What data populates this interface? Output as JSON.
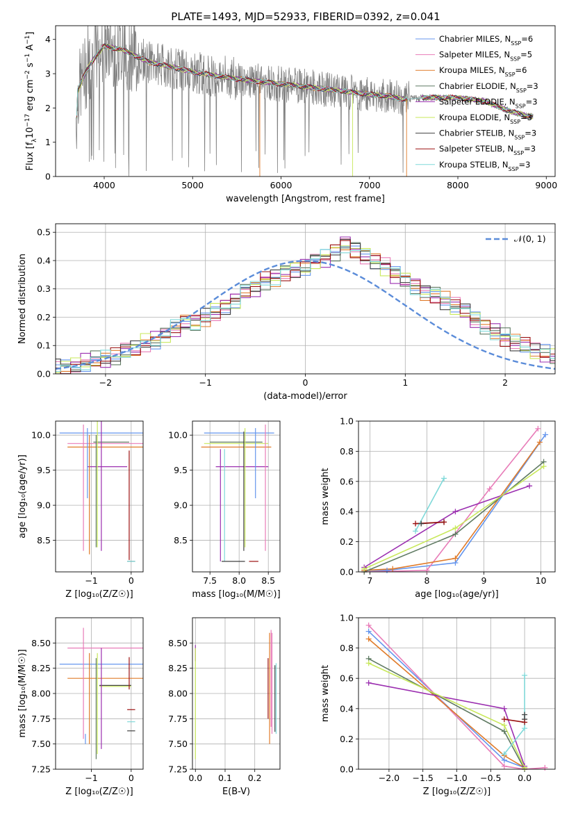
{
  "figure_title": "PLATE=1493, MJD=52933, FIBERID=0392, z=0.041",
  "models": [
    {
      "name": "Chabrier MILES",
      "nssp": "6",
      "color": "#6495ed"
    },
    {
      "name": "Salpeter MILES",
      "nssp": "5",
      "color": "#e87cb8"
    },
    {
      "name": "Kroupa MILES",
      "nssp": "6",
      "color": "#e07b2a"
    },
    {
      "name": "Chabrier ELODIE",
      "nssp": "3",
      "color": "#5f7a62"
    },
    {
      "name": "Salpeter ELODIE",
      "nssp": "3",
      "color": "#9b2fb0"
    },
    {
      "name": "Kroupa ELODIE",
      "nssp": "3",
      "color": "#c8e85a"
    },
    {
      "name": "Chabrier STELIB",
      "nssp": "3",
      "color": "#404040"
    },
    {
      "name": "Salpeter STELIB",
      "nssp": "3",
      "color": "#9b1010"
    },
    {
      "name": "Kroupa STELIB",
      "nssp": "3",
      "color": "#7fd9d9"
    }
  ],
  "chart_data": [
    {
      "type": "line",
      "id": "spectrum",
      "xlabel": "wavelength [Angstrom, rest frame]",
      "ylabel": "Flux [f",
      "xlim": [
        3450,
        9100
      ],
      "ylim": [
        0,
        4.4
      ],
      "xticks": [
        4000,
        5000,
        6000,
        7000,
        8000,
        9000
      ],
      "yticks": [
        0,
        1,
        2,
        3,
        4
      ],
      "data_color": "#808080",
      "continuum": {
        "x": [
          3700,
          3800,
          3900,
          4000,
          4200,
          4500,
          5000,
          5500,
          6000,
          6500,
          7000,
          7200,
          7400,
          7600,
          8000,
          8300,
          8600,
          8800
        ],
        "y": [
          2.5,
          3.1,
          3.5,
          3.8,
          3.7,
          3.35,
          3.05,
          2.85,
          2.7,
          2.55,
          2.4,
          2.35,
          2.25,
          2.3,
          2.3,
          2.2,
          1.9,
          1.75
        ]
      },
      "legend_suffix": "=N",
      "legend_sub": "SSP"
    },
    {
      "type": "line",
      "id": "residuals",
      "xlabel": "(data-model)/error",
      "ylabel": "Normed distribution",
      "xlim": [
        -2.5,
        2.5
      ],
      "ylim": [
        0,
        0.53
      ],
      "xticks": [
        -2,
        -1,
        0,
        1,
        2
      ],
      "yticks": [
        0.0,
        0.1,
        0.2,
        0.3,
        0.4,
        0.5
      ],
      "gauss_label": "𝒩(0, 1)",
      "gauss_color": "#5b8cd9",
      "bin_width": 0.1,
      "hist_base": [
        0.02,
        0.02,
        0.03,
        0.04,
        0.05,
        0.05,
        0.06,
        0.08,
        0.09,
        0.11,
        0.12,
        0.14,
        0.16,
        0.18,
        0.18,
        0.2,
        0.22,
        0.24,
        0.26,
        0.29,
        0.3,
        0.33,
        0.34,
        0.36,
        0.37,
        0.38,
        0.4,
        0.41,
        0.43,
        0.46,
        0.44,
        0.42,
        0.4,
        0.38,
        0.35,
        0.33,
        0.31,
        0.29,
        0.28,
        0.26,
        0.24,
        0.22,
        0.19,
        0.17,
        0.15,
        0.13,
        0.11,
        0.1,
        0.08,
        0.07,
        0.06,
        0.05,
        0.04,
        0.03,
        0.03,
        0.02,
        0.02,
        0.02,
        0.02,
        0.02,
        0.02
      ]
    },
    {
      "type": "scatter",
      "id": "z-age",
      "xlabel": "Z [log₁₀(Z/Z☉)]",
      "ylabel": "age  [log₁₀(age/yr)]",
      "xlim": [
        -1.9,
        0.3
      ],
      "ylim": [
        8.05,
        10.2
      ],
      "xticks": [
        -1,
        0
      ],
      "yticks": [
        8.5,
        9.0,
        9.5,
        10.0
      ],
      "points": [
        {
          "m": 0,
          "x": -0.6,
          "y": 10.03,
          "ex": 1.2,
          "ey": 0.0
        },
        {
          "m": 1,
          "x": -0.6,
          "y": 9.88,
          "ex": 1.0,
          "ey": 0.0
        },
        {
          "m": 2,
          "x": -0.6,
          "y": 9.83,
          "ex": 1.0,
          "ey": 0.0
        },
        {
          "m": 3,
          "x": -0.5,
          "y": 9.9,
          "ex": 0.45,
          "ey": 0.0
        },
        {
          "m": 4,
          "x": -0.6,
          "y": 9.55,
          "ex": 0.5,
          "ey": 0.0
        },
        {
          "m": 1,
          "x": -1.2,
          "y": 9.25,
          "ex": 0.0,
          "ey": 0.9
        },
        {
          "m": 2,
          "x": -1.05,
          "y": 9.15,
          "ex": 0.0,
          "ey": 0.85
        },
        {
          "m": 5,
          "x": -0.85,
          "y": 9.3,
          "ex": 0.0,
          "ey": 0.9
        },
        {
          "m": 4,
          "x": -0.75,
          "y": 9.3,
          "ex": 0.0,
          "ey": 0.95
        },
        {
          "m": 3,
          "x": -0.88,
          "y": 9.2,
          "ex": 0.0,
          "ey": 0.8
        },
        {
          "m": 0,
          "x": -1.1,
          "y": 9.6,
          "ex": 0.0,
          "ey": 0.5
        },
        {
          "m": 7,
          "x": -0.05,
          "y": 9.0,
          "ex": 0.0,
          "ey": 0.78
        },
        {
          "m": 6,
          "x": 0.0,
          "y": 8.2,
          "ex": 0.1,
          "ey": 0.0
        },
        {
          "m": 8,
          "x": 0.0,
          "y": 8.2,
          "ex": 0.1,
          "ey": 0.0
        }
      ]
    },
    {
      "type": "scatter",
      "id": "mass-age",
      "xlabel": "mass [log₁₀(M/M☉)]",
      "ylabel": "",
      "xlim": [
        7.2,
        8.7
      ],
      "ylim": [
        8.05,
        10.2
      ],
      "xticks": [
        7.5,
        8.0,
        8.5
      ],
      "yticks": [
        8.5,
        9.0,
        9.5,
        10.0
      ],
      "points": [
        {
          "m": 0,
          "x": 8.0,
          "y": 10.03,
          "ex": 0.6,
          "ey": 0.0
        },
        {
          "m": 5,
          "x": 7.95,
          "y": 9.88,
          "ex": 0.55,
          "ey": 0.0
        },
        {
          "m": 2,
          "x": 7.95,
          "y": 9.83,
          "ex": 0.6,
          "ey": 0.0
        },
        {
          "m": 3,
          "x": 7.95,
          "y": 9.9,
          "ex": 0.45,
          "ey": 0.0
        },
        {
          "m": 4,
          "x": 8.05,
          "y": 9.55,
          "ex": 0.45,
          "ey": 0.0
        },
        {
          "m": 1,
          "x": 8.45,
          "y": 9.25,
          "ex": 0.0,
          "ey": 0.9
        },
        {
          "m": 0,
          "x": 8.28,
          "y": 9.6,
          "ex": 0.0,
          "ey": 0.5
        },
        {
          "m": 6,
          "x": 8.08,
          "y": 9.2,
          "ex": 0.0,
          "ey": 0.85
        },
        {
          "m": 5,
          "x": 8.1,
          "y": 9.25,
          "ex": 0.0,
          "ey": 0.85
        },
        {
          "m": 8,
          "x": 7.75,
          "y": 9.0,
          "ex": 0.0,
          "ey": 0.8
        },
        {
          "m": 4,
          "x": 7.68,
          "y": 9.0,
          "ex": 0.0,
          "ey": 0.8
        },
        {
          "m": 6,
          "x": 7.9,
          "y": 8.2,
          "ex": 0.2,
          "ey": 0.0
        },
        {
          "m": 7,
          "x": 8.25,
          "y": 8.2,
          "ex": 0.08,
          "ey": 0.0
        }
      ]
    },
    {
      "type": "line",
      "id": "age-weight",
      "xlabel": "age  [log₁₀(age/yr)]",
      "ylabel": "mass weight",
      "xlim": [
        6.8,
        10.25
      ],
      "ylim": [
        0,
        1.0
      ],
      "xticks": [
        7,
        8,
        9,
        10
      ],
      "yticks": [
        0.0,
        0.2,
        0.4,
        0.6,
        0.8,
        1.0
      ],
      "series": [
        {
          "m": 0,
          "x": [
            6.9,
            7.3,
            8.5,
            10.08
          ],
          "y": [
            0.01,
            0.01,
            0.06,
            0.91
          ]
        },
        {
          "m": 1,
          "x": 6.9,
          "y": 0.0,
          "x2": [
            6.9,
            8.0,
            9.1,
            9.95
          ],
          "y2": [
            0.0,
            0.01,
            0.55,
            0.95
          ]
        },
        {
          "m": 2,
          "x": [
            6.9,
            7.4,
            8.5,
            9.98
          ],
          "y": [
            0.01,
            0.02,
            0.09,
            0.86
          ]
        },
        {
          "m": 3,
          "x": [
            6.9,
            8.5,
            10.05
          ],
          "y": [
            0.0,
            0.25,
            0.73
          ]
        },
        {
          "m": 4,
          "x": [
            6.9,
            8.5,
            9.8
          ],
          "y": [
            0.03,
            0.4,
            0.57
          ]
        },
        {
          "m": 5,
          "x": [
            6.9,
            8.5,
            10.05
          ],
          "y": [
            0.02,
            0.29,
            0.7
          ]
        },
        {
          "m": 6,
          "x": [
            7.9,
            8.3
          ],
          "y": [
            0.32,
            0.33
          ]
        },
        {
          "m": 7,
          "x": [
            7.8,
            8.3
          ],
          "y": [
            0.32,
            0.33
          ]
        },
        {
          "m": 8,
          "x": [
            7.8,
            8.3
          ],
          "y": [
            0.27,
            0.62
          ]
        }
      ]
    },
    {
      "type": "scatter",
      "id": "z-mass",
      "xlabel": "Z [log₁₀(Z/Z☉)]",
      "ylabel": "mass [log₁₀(M/M☉)]",
      "xlim": [
        -1.9,
        0.3
      ],
      "ylim": [
        7.25,
        8.75
      ],
      "xticks": [
        -1,
        0
      ],
      "yticks": [
        7.25,
        7.5,
        7.75,
        8.0,
        8.25,
        8.5
      ],
      "points": [
        {
          "m": 1,
          "x": -0.6,
          "y": 8.45,
          "ex": 1.0,
          "ey": 0.0
        },
        {
          "m": 0,
          "x": -0.6,
          "y": 8.29,
          "ex": 1.2,
          "ey": 0.0
        },
        {
          "m": 2,
          "x": -0.6,
          "y": 8.15,
          "ex": 1.0,
          "ey": 0.0
        },
        {
          "m": 6,
          "x": -0.4,
          "y": 8.08,
          "ex": 0.4,
          "ey": 0.0
        },
        {
          "m": 5,
          "x": -0.4,
          "y": 8.07,
          "ex": 0.4,
          "ey": 0.0
        },
        {
          "m": 1,
          "x": -1.2,
          "y": 8.1,
          "ex": 0.0,
          "ey": 0.55
        },
        {
          "m": 0,
          "x": -1.15,
          "y": 7.55,
          "ex": 0.0,
          "ey": 0.05
        },
        {
          "m": 2,
          "x": -1.05,
          "y": 7.95,
          "ex": 0.0,
          "ey": 0.45
        },
        {
          "m": 5,
          "x": -0.85,
          "y": 7.9,
          "ex": 0.0,
          "ey": 0.5
        },
        {
          "m": 3,
          "x": -0.88,
          "y": 7.85,
          "ex": 0.0,
          "ey": 0.5
        },
        {
          "m": 4,
          "x": -0.75,
          "y": 7.95,
          "ex": 0.0,
          "ey": 0.5
        },
        {
          "m": 7,
          "x": -0.05,
          "y": 8.2,
          "ex": 0.0,
          "ey": 0.16
        },
        {
          "m": 7,
          "x": 0.0,
          "y": 7.84,
          "ex": 0.1,
          "ey": 0.0
        },
        {
          "m": 8,
          "x": 0.0,
          "y": 7.72,
          "ex": 0.1,
          "ey": 0.0
        },
        {
          "m": 6,
          "x": 0.0,
          "y": 7.63,
          "ex": 0.1,
          "ey": 0.0
        }
      ]
    },
    {
      "type": "scatter",
      "id": "ebv-mass",
      "xlabel": "E(B-V)",
      "ylabel": "",
      "xlim": [
        -0.01,
        0.285
      ],
      "ylim": [
        7.25,
        8.75
      ],
      "xticks": [
        0.0,
        0.1,
        0.2
      ],
      "yticks": [
        7.25,
        7.5,
        7.75,
        8.0,
        8.25,
        8.5
      ],
      "points": [
        {
          "m": 4,
          "x": 0.0,
          "y": 8.4,
          "ex": 0.0,
          "ey": 0.08
        },
        {
          "m": 5,
          "x": 0.0,
          "y": 7.9,
          "ex": 0.0,
          "ey": 0.55
        },
        {
          "m": 7,
          "x": 0.245,
          "y": 8.05,
          "ex": 0.0,
          "ey": 0.3
        },
        {
          "m": 2,
          "x": 0.25,
          "y": 8.05,
          "ex": 0.0,
          "ey": 0.55
        },
        {
          "m": 1,
          "x": 0.255,
          "y": 8.15,
          "ex": 0.0,
          "ey": 0.48
        },
        {
          "m": 1,
          "x": 0.258,
          "y": 8.1,
          "ex": 0.0,
          "ey": 0.5
        },
        {
          "m": 6,
          "x": 0.268,
          "y": 7.95,
          "ex": 0.0,
          "ey": 0.33
        },
        {
          "m": 8,
          "x": 0.272,
          "y": 7.95,
          "ex": 0.0,
          "ey": 0.35
        }
      ]
    },
    {
      "type": "line",
      "id": "z-weight",
      "xlabel": "Z [log₁₀(Z/Z☉)]",
      "ylabel": "mass weight",
      "xlim": [
        -2.45,
        0.45
      ],
      "ylim": [
        0,
        1.0
      ],
      "xticks": [
        -2.0,
        -1.5,
        -1.0,
        -0.5,
        0.0
      ],
      "yticks": [
        0.0,
        0.2,
        0.4,
        0.6,
        0.8,
        1.0
      ],
      "series": [
        {
          "m": 0,
          "x": [
            -2.3,
            -0.3,
            0.0
          ],
          "y": [
            0.91,
            0.06,
            0.01
          ]
        },
        {
          "m": 1,
          "x": [
            -2.3,
            -0.3,
            0.0,
            0.3
          ],
          "y": [
            0.95,
            0.02,
            0.0,
            0.01
          ]
        },
        {
          "m": 2,
          "x": [
            -2.3,
            -0.3,
            0.0
          ],
          "y": [
            0.86,
            0.09,
            0.01
          ]
        },
        {
          "m": 3,
          "x": [
            -2.3,
            -0.3,
            0.0
          ],
          "y": [
            0.73,
            0.25,
            0.0
          ]
        },
        {
          "m": 4,
          "x": [
            -2.3,
            -0.3,
            0.0
          ],
          "y": [
            0.57,
            0.4,
            0.02
          ]
        },
        {
          "m": 5,
          "x": [
            -2.3,
            -0.3,
            0.0
          ],
          "y": [
            0.7,
            0.29,
            0.01
          ]
        },
        {
          "m": 6,
          "x": [
            0.0,
            0.0
          ],
          "y": [
            0.36,
            0.33
          ]
        },
        {
          "m": 7,
          "x": [
            -0.3,
            0.0
          ],
          "y": [
            0.33,
            0.31
          ]
        },
        {
          "m": 8,
          "x": [
            -0.3,
            0.0,
            0.0
          ],
          "y": [
            0.1,
            0.27,
            0.62
          ]
        }
      ]
    }
  ]
}
